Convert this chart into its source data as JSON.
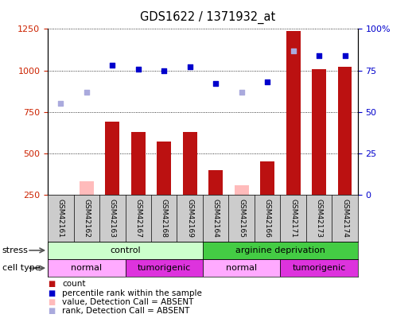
{
  "title": "GDS1622 / 1371932_at",
  "samples": [
    "GSM42161",
    "GSM42162",
    "GSM42163",
    "GSM42167",
    "GSM42168",
    "GSM42169",
    "GSM42164",
    "GSM42165",
    "GSM42166",
    "GSM42171",
    "GSM42173",
    "GSM42174"
  ],
  "count_values": [
    null,
    null,
    690,
    630,
    570,
    630,
    400,
    null,
    450,
    1240,
    1010,
    1020
  ],
  "count_absent": [
    250,
    330,
    null,
    null,
    null,
    null,
    null,
    310,
    null,
    null,
    null,
    null
  ],
  "rank_values": [
    null,
    null,
    1030,
    1010,
    1000,
    1020,
    920,
    null,
    930,
    null,
    1090,
    1090
  ],
  "rank_absent": [
    800,
    870,
    null,
    null,
    null,
    null,
    null,
    870,
    null,
    1120,
    null,
    null
  ],
  "ylim_left": [
    250,
    1250
  ],
  "ylim_right_ticks": [
    0,
    25,
    50,
    75,
    100
  ],
  "yticks_left": [
    250,
    500,
    750,
    1000,
    1250
  ],
  "bar_color": "#bb1111",
  "bar_absent_color": "#ffbbbb",
  "rank_color": "#0000cc",
  "rank_absent_color": "#aaaadd",
  "stress_groups": [
    {
      "label": "control",
      "start": 0,
      "end": 6,
      "color": "#ccffcc"
    },
    {
      "label": "arginine deprivation",
      "start": 6,
      "end": 12,
      "color": "#44cc44"
    }
  ],
  "cell_groups": [
    {
      "label": "normal",
      "start": 0,
      "end": 3,
      "color": "#ffaaff"
    },
    {
      "label": "tumorigenic",
      "start": 3,
      "end": 6,
      "color": "#dd33dd"
    },
    {
      "label": "normal",
      "start": 6,
      "end": 9,
      "color": "#ffaaff"
    },
    {
      "label": "tumorigenic",
      "start": 9,
      "end": 12,
      "color": "#dd33dd"
    }
  ],
  "legend_items": [
    {
      "label": "count",
      "color": "#bb1111"
    },
    {
      "label": "percentile rank within the sample",
      "color": "#0000cc"
    },
    {
      "label": "value, Detection Call = ABSENT",
      "color": "#ffbbbb"
    },
    {
      "label": "rank, Detection Call = ABSENT",
      "color": "#aaaadd"
    }
  ]
}
